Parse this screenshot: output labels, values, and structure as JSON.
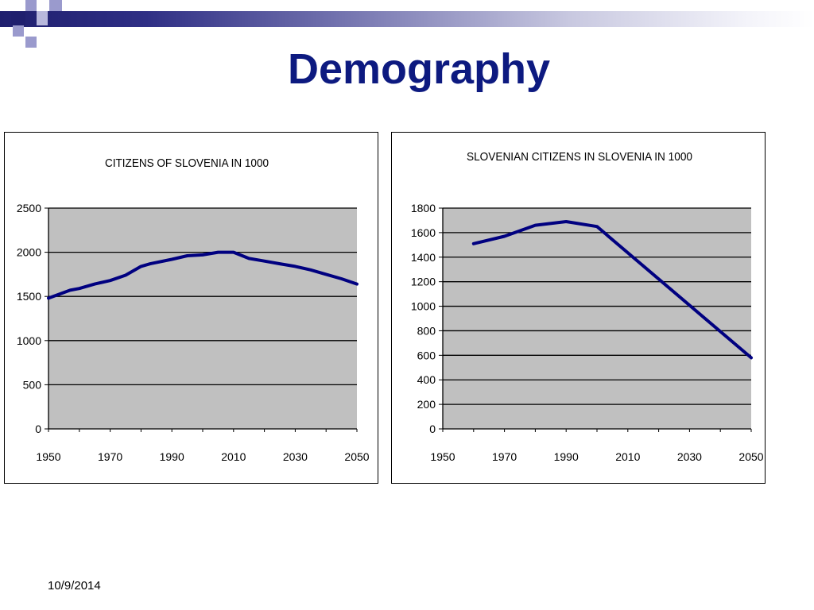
{
  "slide": {
    "title": "Demography",
    "date": "10/9/2014"
  },
  "colors": {
    "title": "#0d1a80",
    "line": "#000080",
    "plot_bg": "#c0c0c0",
    "accent_dark": "#1f1f6e",
    "accent_light": "#9a9acd"
  },
  "chart_data": [
    {
      "type": "line",
      "title": "CITIZENS OF SLOVENIA IN 1000",
      "xlabel": "",
      "ylabel": "",
      "xlim": [
        1950,
        2050
      ],
      "ylim": [
        0,
        2500
      ],
      "x_ticks": [
        1950,
        1970,
        1990,
        2010,
        2030,
        2050
      ],
      "y_ticks": [
        0,
        500,
        1000,
        1500,
        2000,
        2500
      ],
      "grid": true,
      "legend": "none",
      "series": [
        {
          "x": [
            1950,
            1957,
            1960,
            1965,
            1970,
            1975,
            1980,
            1983,
            1990,
            1995,
            2000,
            2005,
            2010,
            2015,
            2020,
            2025,
            2030,
            2035,
            2040,
            2045,
            2050
          ],
          "y": [
            1480,
            1570,
            1590,
            1640,
            1680,
            1740,
            1840,
            1870,
            1920,
            1960,
            1970,
            2000,
            2000,
            1930,
            1900,
            1870,
            1840,
            1800,
            1750,
            1700,
            1640
          ]
        }
      ]
    },
    {
      "type": "line",
      "title": "SLOVENIAN CITIZENS IN SLOVENIA IN 1000",
      "xlabel": "",
      "ylabel": "",
      "xlim": [
        1950,
        2050
      ],
      "ylim": [
        0,
        1800
      ],
      "x_ticks": [
        1950,
        1970,
        1990,
        2010,
        2030,
        2050
      ],
      "y_ticks": [
        0,
        200,
        400,
        600,
        800,
        1000,
        1200,
        1400,
        1600,
        1800
      ],
      "grid": true,
      "legend": "none",
      "series": [
        {
          "x": [
            1960,
            1970,
            1980,
            1990,
            2000,
            2050
          ],
          "y": [
            1510,
            1570,
            1660,
            1690,
            1650,
            580
          ]
        }
      ]
    }
  ]
}
